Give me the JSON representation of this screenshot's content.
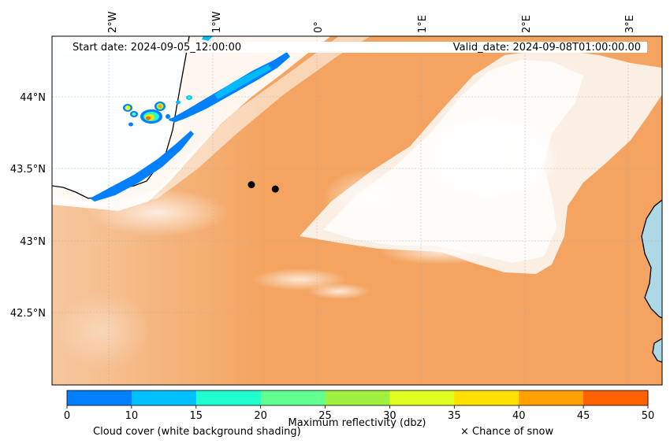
{
  "map": {
    "start_date_label": "Start date: 2024-09-05_12:00:00",
    "valid_date_label": "Valid_date: 2024-09-08T01:00:00.00",
    "longitude_ticks": [
      "2°W",
      "1°W",
      "0°",
      "1°E",
      "2°E",
      "3°E"
    ],
    "latitude_ticks": [
      "44°N",
      "43.5°N",
      "43°N",
      "42.5°N"
    ],
    "markers": [
      {
        "lon": -0.63,
        "lat": 43.39
      },
      {
        "lon": -0.4,
        "lat": 43.36
      }
    ],
    "colors": {
      "land_fill": "#f4a460",
      "sea": "#add8e6",
      "cloud": "#ffffff",
      "marker": "#000000"
    }
  },
  "colorbar": {
    "ticks": [
      "0",
      "10",
      "15",
      "20",
      "25",
      "30",
      "35",
      "40",
      "45",
      "50"
    ],
    "colors": [
      "#0080ff",
      "#00c0ff",
      "#20ffd0",
      "#60ff90",
      "#a0f040",
      "#e0ff20",
      "#ffe000",
      "#ffa000",
      "#ff6000"
    ],
    "label": "Maximum reflectivity (dbz)",
    "cloud_label": "Cloud cover (white background shading)",
    "snow_label": "× Chance of snow"
  }
}
